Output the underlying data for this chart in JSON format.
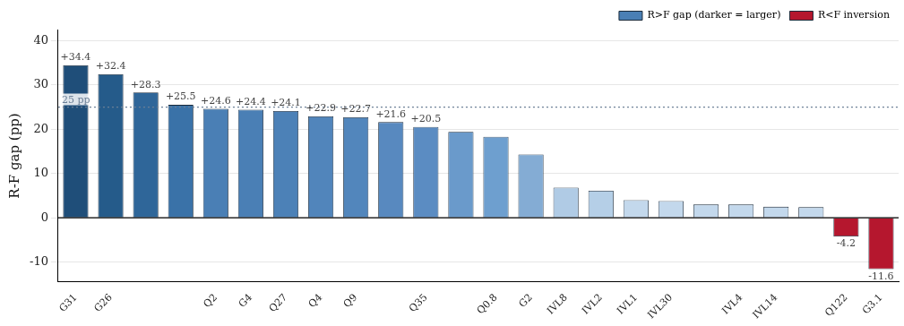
{
  "chart_data": {
    "type": "bar",
    "ylabel": "R-F gap (pp)",
    "categories": [
      "G31",
      "G26",
      null,
      null,
      "Q2",
      "G4",
      "Q27",
      "Q4",
      "Q9",
      null,
      "Q35",
      null,
      "Q0.8",
      "G2",
      "IVL8",
      "IVL2",
      "IVL1",
      "IVL30",
      null,
      "IVL4",
      "IVL14",
      null,
      "Q122",
      "G3.1"
    ],
    "series": [
      {
        "name": "R>F gap (darker = larger)",
        "color": "#4a7fb5",
        "colors": [
          "#1f4e79",
          "#255b8a",
          "#2f6699",
          "#3a72a8",
          "#4a7fb5",
          "#4a7fb5",
          "#4c81b7",
          "#5185bb",
          "#5286bc",
          "#5889bf",
          "#5b8cc2",
          "#6a9acb",
          "#6e9fcf",
          "#84acd4",
          "#b0cbe5",
          "#b5cfe7",
          "#c3d8ec",
          "#c3d8ec",
          "#c3d8ec",
          "#c3d8ec",
          "#c3d8ec",
          "#c3d8ec",
          "#c3d8ec",
          "#c3d8ec"
        ],
        "values": [
          34.4,
          32.4,
          28.3,
          25.5,
          24.6,
          24.4,
          24.1,
          22.9,
          22.7,
          21.6,
          20.5,
          19.4,
          18.3,
          14.3,
          6.8,
          6.1,
          4.0,
          3.8,
          3.0,
          3.0,
          2.5,
          2.4,
          null,
          null
        ],
        "value_labels": [
          "+34.4",
          "+32.4",
          "+28.3",
          "+25.5",
          "+24.6",
          "+24.4",
          "+24.1",
          "+22.9",
          "+22.7",
          "+21.6",
          "+20.5",
          null,
          null,
          null,
          null,
          null,
          null,
          null,
          null,
          null,
          null,
          null,
          null,
          null
        ]
      },
      {
        "name": "R<F inversion",
        "color": "#b5172e",
        "values": [
          null,
          null,
          null,
          null,
          null,
          null,
          null,
          null,
          null,
          null,
          null,
          null,
          null,
          null,
          null,
          null,
          null,
          null,
          null,
          null,
          null,
          null,
          -4.2,
          -11.6
        ],
        "value_labels": [
          null,
          null,
          null,
          null,
          null,
          null,
          null,
          null,
          null,
          null,
          null,
          null,
          null,
          null,
          null,
          null,
          null,
          null,
          null,
          null,
          null,
          null,
          "-4.2",
          "-11.6"
        ]
      }
    ],
    "ylim": [
      -14.5,
      42.5
    ],
    "yticks": [
      -10,
      0,
      10,
      20,
      30,
      40
    ],
    "grid": "y",
    "legend": "top right",
    "ref_lines": [
      {
        "axis": "y",
        "value": 25,
        "label": "25 pp",
        "color": "#6b7f96",
        "line_style": "dotted"
      },
      {
        "axis": "y",
        "value": 0,
        "color": "#000000",
        "line_style": "solid"
      }
    ]
  }
}
